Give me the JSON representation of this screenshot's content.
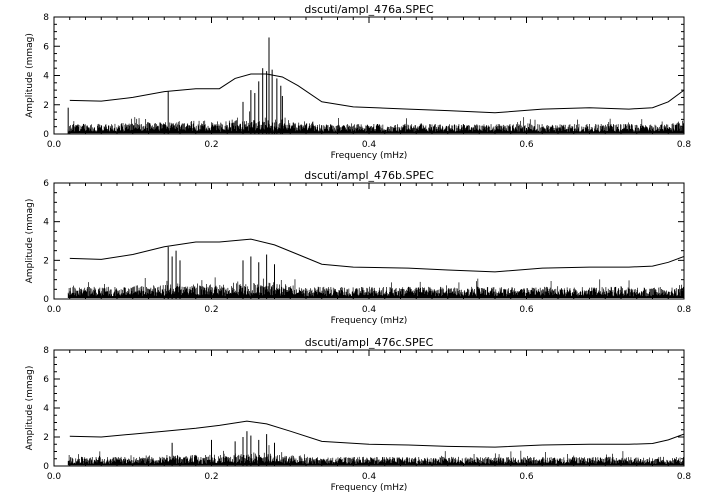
{
  "colors": {
    "background": "#ffffff",
    "ink": "#000000"
  },
  "chart_data": [
    {
      "type": "line",
      "title": "dscuti/ampl_476a.SPEC",
      "xlabel": "Frequency (mHz)",
      "ylabel": "Amplitude (mmag)",
      "xlim": [
        0.0,
        0.8
      ],
      "ylim": [
        0,
        8
      ],
      "xticks": [
        "0.0",
        "0.2",
        "0.4",
        "0.6",
        "0.8"
      ],
      "yticks": [
        "0",
        "2",
        "4",
        "6",
        "8"
      ],
      "grid": false,
      "noise_level": 0.6,
      "series": [
        {
          "kind": "threshold",
          "x": [
            0.02,
            0.06,
            0.1,
            0.14,
            0.18,
            0.21,
            0.23,
            0.25,
            0.27,
            0.29,
            0.31,
            0.34,
            0.38,
            0.45,
            0.5,
            0.56,
            0.62,
            0.68,
            0.73,
            0.76,
            0.78,
            0.8
          ],
          "y": [
            2.3,
            2.25,
            2.5,
            2.9,
            3.1,
            3.1,
            3.8,
            4.1,
            4.1,
            3.9,
            3.3,
            2.2,
            1.85,
            1.7,
            1.6,
            1.45,
            1.7,
            1.8,
            1.7,
            1.8,
            2.2,
            3.0
          ]
        },
        {
          "kind": "peaks",
          "x": [
            0.018,
            0.145,
            0.265,
            0.27,
            0.273,
            0.277,
            0.283,
            0.288,
            0.26,
            0.255,
            0.25,
            0.24,
            0.29,
            0.8
          ],
          "y": [
            1.8,
            2.9,
            4.5,
            4.3,
            6.6,
            4.4,
            3.8,
            3.3,
            3.6,
            2.8,
            3.0,
            2.2,
            2.6,
            1.7
          ]
        }
      ]
    },
    {
      "type": "line",
      "title": "dscuti/ampl_476b.SPEC",
      "xlabel": "Frequency (mHz)",
      "ylabel": "Amplitude (mmag)",
      "xlim": [
        0.0,
        0.8
      ],
      "ylim": [
        0,
        6
      ],
      "xticks": [
        "0.0",
        "0.2",
        "0.4",
        "0.6",
        "0.8"
      ],
      "yticks": [
        "0",
        "2",
        "4",
        "6"
      ],
      "grid": false,
      "noise_level": 0.55,
      "series": [
        {
          "kind": "threshold",
          "x": [
            0.02,
            0.06,
            0.1,
            0.14,
            0.18,
            0.21,
            0.25,
            0.28,
            0.31,
            0.34,
            0.38,
            0.45,
            0.5,
            0.56,
            0.62,
            0.68,
            0.73,
            0.76,
            0.78,
            0.8
          ],
          "y": [
            2.1,
            2.05,
            2.3,
            2.7,
            2.95,
            2.95,
            3.1,
            2.8,
            2.3,
            1.8,
            1.65,
            1.6,
            1.5,
            1.4,
            1.6,
            1.65,
            1.65,
            1.7,
            1.9,
            2.2
          ]
        },
        {
          "kind": "peaks",
          "x": [
            0.145,
            0.15,
            0.155,
            0.16,
            0.24,
            0.25,
            0.26,
            0.27,
            0.28
          ],
          "y": [
            2.7,
            2.2,
            2.5,
            2.0,
            2.0,
            2.2,
            1.9,
            2.3,
            1.8
          ]
        }
      ]
    },
    {
      "type": "line",
      "title": "dscuti/ampl_476c.SPEC",
      "xlabel": "Frequency (mHz)",
      "ylabel": "Amplitude (mmag)",
      "xlim": [
        0.0,
        0.8
      ],
      "ylim": [
        0,
        8
      ],
      "xticks": [
        "0.0",
        "0.2",
        "0.4",
        "0.6",
        "0.8"
      ],
      "yticks": [
        "0",
        "2",
        "4",
        "6",
        "8"
      ],
      "grid": false,
      "noise_level": 0.55,
      "series": [
        {
          "kind": "threshold",
          "x": [
            0.02,
            0.06,
            0.1,
            0.14,
            0.18,
            0.21,
            0.245,
            0.27,
            0.3,
            0.34,
            0.4,
            0.45,
            0.5,
            0.56,
            0.62,
            0.68,
            0.73,
            0.76,
            0.78,
            0.8
          ],
          "y": [
            2.05,
            2.0,
            2.2,
            2.4,
            2.6,
            2.8,
            3.1,
            2.9,
            2.4,
            1.7,
            1.5,
            1.45,
            1.35,
            1.3,
            1.45,
            1.5,
            1.5,
            1.55,
            1.8,
            2.2
          ]
        },
        {
          "kind": "peaks",
          "x": [
            0.15,
            0.2,
            0.23,
            0.24,
            0.245,
            0.25,
            0.26,
            0.27,
            0.28
          ],
          "y": [
            1.6,
            1.8,
            1.7,
            2.0,
            2.4,
            2.1,
            1.8,
            2.2,
            1.6
          ]
        }
      ]
    }
  ]
}
